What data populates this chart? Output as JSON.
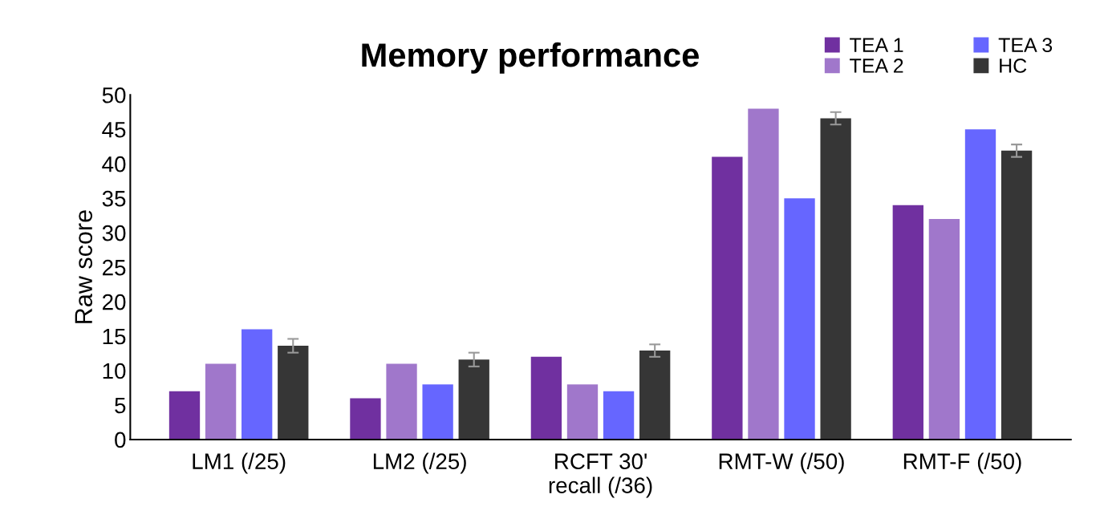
{
  "chart_data": {
    "type": "bar",
    "title": "Memory performance",
    "ylabel": "Raw score",
    "categories": [
      "LM1 (/25)",
      "LM2 (/25)",
      "RCFT 30'\nrecall (/36)",
      "RMT-W (/50)",
      "RMT-F (/50)"
    ],
    "series": [
      {
        "name": "TEA 1",
        "color": "#7030a0",
        "values": [
          7,
          6,
          12,
          41,
          34
        ]
      },
      {
        "name": "TEA 2",
        "color": "#a077cb",
        "values": [
          11,
          11,
          8,
          48,
          32
        ]
      },
      {
        "name": "TEA 3",
        "color": "#6666ff",
        "values": [
          16,
          8,
          7,
          35,
          45
        ]
      },
      {
        "name": "HC",
        "color": "#363636",
        "values": [
          13.6,
          11.6,
          12.9,
          46.6,
          41.9
        ],
        "errors": [
          1,
          1,
          0.9,
          0.9,
          0.9
        ]
      }
    ],
    "ylim": [
      0,
      50
    ],
    "yticks": [
      0,
      5,
      10,
      15,
      20,
      25,
      30,
      35,
      40,
      45,
      50
    ],
    "grid": false,
    "legend": "top right"
  }
}
